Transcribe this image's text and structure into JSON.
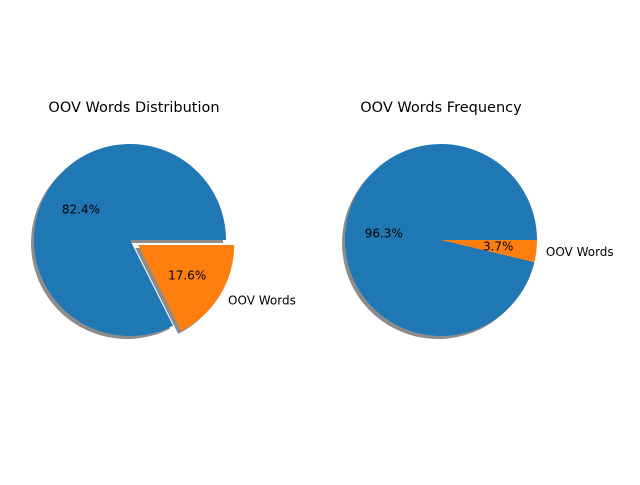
{
  "chart_data": [
    {
      "type": "pie",
      "title": "OOV Words Distribution",
      "slices": [
        {
          "label": "",
          "value": 82.4,
          "pct_label": "82.4%",
          "color": "#1f77b4",
          "explode": false
        },
        {
          "label": "OOV Words",
          "value": 17.6,
          "pct_label": "17.6%",
          "color": "#ff7f0e",
          "explode": true
        }
      ],
      "shadow": true,
      "legend": "none"
    },
    {
      "type": "pie",
      "title": "OOV Words Frequency",
      "slices": [
        {
          "label": "",
          "value": 96.3,
          "pct_label": "96.3%",
          "color": "#1f77b4",
          "explode": false
        },
        {
          "label": "OOV Words",
          "value": 3.7,
          "pct_label": "3.7%",
          "color": "#ff7f0e",
          "explode": false
        }
      ],
      "shadow": true,
      "legend": "none"
    }
  ]
}
